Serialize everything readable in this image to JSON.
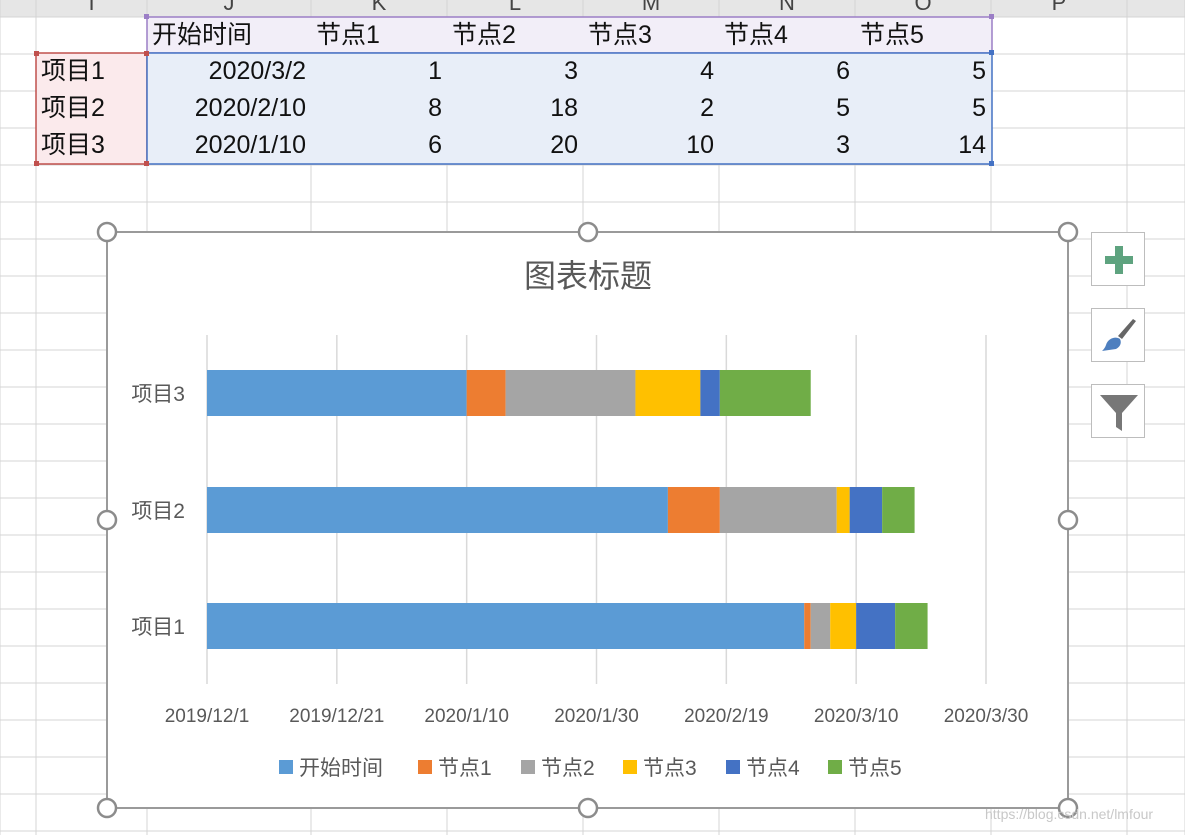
{
  "sheet": {
    "column_headers": [
      "I",
      "J",
      "K",
      "L",
      "M",
      "N",
      "O",
      "P"
    ],
    "header_row": [
      "开始时间",
      "节点1",
      "节点2",
      "节点3",
      "节点4",
      "节点5"
    ],
    "rows": [
      {
        "label": "项目1",
        "start": "2020/3/2",
        "n1": "1",
        "n2": "3",
        "n3": "4",
        "n4": "6",
        "n5": "5"
      },
      {
        "label": "项目2",
        "start": "2020/2/10",
        "n1": "8",
        "n2": "18",
        "n3": "2",
        "n4": "5",
        "n5": "5"
      },
      {
        "label": "项目3",
        "start": "2020/1/10",
        "n1": "6",
        "n2": "20",
        "n3": "10",
        "n4": "3",
        "n5": "14"
      }
    ]
  },
  "chart_data": {
    "type": "bar",
    "orientation": "horizontal",
    "stacked": true,
    "title": "图表标题",
    "categories": [
      "项目1",
      "项目2",
      "项目3"
    ],
    "x_axis": {
      "type": "date",
      "min": "2019-12-01",
      "max": "2020-03-30",
      "tick_labels": [
        "2019/12/1",
        "2019/12/21",
        "2020/1/10",
        "2020/1/30",
        "2020/2/19",
        "2020/3/10",
        "2020/3/30"
      ]
    },
    "series": [
      {
        "name": "开始时间",
        "color": "#5b9bd5",
        "values": [
          "2020-03-02",
          "2020-02-10",
          "2020-01-10"
        ]
      },
      {
        "name": "节点1",
        "color": "#ed7d31",
        "values": [
          1,
          8,
          6
        ]
      },
      {
        "name": "节点2",
        "color": "#a5a5a5",
        "values": [
          3,
          18,
          20
        ]
      },
      {
        "name": "节点3",
        "color": "#ffc000",
        "values": [
          4,
          2,
          10
        ]
      },
      {
        "name": "节点4",
        "color": "#4472c4",
        "values": [
          6,
          5,
          3
        ]
      },
      {
        "name": "节点5",
        "color": "#70ad47",
        "values": [
          5,
          5,
          14
        ]
      }
    ],
    "legend_position": "bottom",
    "gridlines": true
  },
  "side_buttons": [
    {
      "icon": "plus-icon",
      "color": "#5ea37f"
    },
    {
      "icon": "brush-icon",
      "color": "#4e7fbf"
    },
    {
      "icon": "filter-icon",
      "color": "#777777"
    }
  ],
  "watermark": "https://blog.csdn.net/lmfour"
}
